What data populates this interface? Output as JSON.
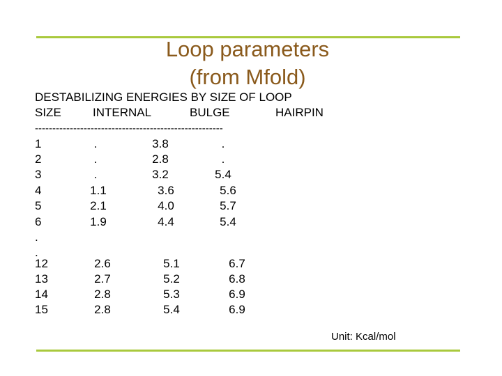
{
  "title": [
    "Loop parameters",
    "(from Mfold)"
  ],
  "table": {
    "heading": "DESTABILIZING ENERGIES BY SIZE OF LOOP",
    "header": [
      "SIZE",
      "INTERNAL",
      "BULGE",
      "HAIRPIN"
    ],
    "separator": "------------------------------------------------------",
    "rows": [
      [
        "1",
        ".",
        "3.8",
        "."
      ],
      [
        "2",
        ".",
        "2.8",
        "."
      ],
      [
        "3",
        ".",
        "3.2",
        "5.4"
      ],
      [
        "4",
        "1.1",
        "3.6",
        "5.6"
      ],
      [
        "5",
        "2.1",
        "4.0",
        "5.7"
      ],
      [
        "6",
        "1.9",
        "4.4",
        "5.4"
      ],
      [
        "."
      ],
      [
        "."
      ],
      [
        "12",
        "2.6",
        "5.1",
        "6.7"
      ],
      [
        "13",
        "2.7",
        "5.2",
        "6.8"
      ],
      [
        "14",
        "2.8",
        "5.3",
        "6.9"
      ],
      [
        "15",
        "2.8",
        "5.4",
        "6.9"
      ]
    ]
  },
  "unit": "Unit: Kcal/mol"
}
